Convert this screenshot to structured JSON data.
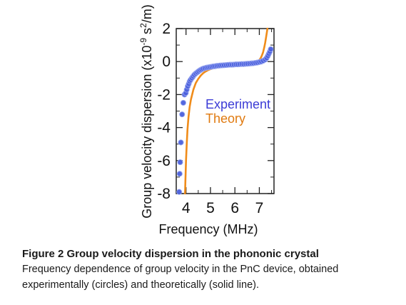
{
  "chart_data": {
    "type": "scatter",
    "xlabel": "Frequency (MHz)",
    "ylabel_prefix": "Group velocity dispersion (x10",
    "ylabel_exp1": "-9",
    "ylabel_mid": " s",
    "ylabel_exp2": "2",
    "ylabel_suffix": "/m)",
    "xlim": [
      3.6,
      7.6
    ],
    "ylim": [
      -8,
      2
    ],
    "xticks": [
      4,
      5,
      6,
      7
    ],
    "xtick_labels": [
      "4",
      "5",
      "6",
      "7"
    ],
    "yticks": [
      -8,
      -6,
      -4,
      -2,
      0,
      2
    ],
    "ytick_labels": [
      "-8",
      "-6",
      "-4",
      "-2",
      "0",
      "2"
    ],
    "legend_position": "right",
    "series": [
      {
        "name": "Experiment",
        "kind": "circles",
        "color": "#4a5fdc",
        "x": [
          3.72,
          3.74,
          3.76,
          3.79,
          3.84,
          3.89,
          3.94,
          3.99,
          4.03,
          4.07,
          4.11,
          4.15,
          4.19,
          4.24,
          4.29,
          4.34,
          4.4,
          4.46,
          4.52,
          4.58,
          4.64,
          4.7,
          4.77,
          4.84,
          4.91,
          4.98,
          5.05,
          5.12,
          5.19,
          5.26,
          5.33,
          5.4,
          5.48,
          5.56,
          5.64,
          5.72,
          5.8,
          5.88,
          5.96,
          6.04,
          6.12,
          6.2,
          6.28,
          6.36,
          6.44,
          6.52,
          6.6,
          6.68,
          6.76,
          6.84,
          6.92,
          7.0,
          7.08,
          7.16,
          7.24,
          7.3,
          7.35,
          7.39,
          7.43,
          7.47
        ],
        "y": [
          -7.9,
          -6.8,
          -6.1,
          -4.9,
          -3.2,
          -2.5,
          -2.0,
          -1.9,
          -1.7,
          -1.5,
          -1.35,
          -1.2,
          -1.1,
          -1.0,
          -0.9,
          -0.8,
          -0.72,
          -0.65,
          -0.58,
          -0.52,
          -0.47,
          -0.43,
          -0.4,
          -0.37,
          -0.35,
          -0.33,
          -0.31,
          -0.29,
          -0.28,
          -0.26,
          -0.25,
          -0.24,
          -0.23,
          -0.22,
          -0.21,
          -0.2,
          -0.19,
          -0.19,
          -0.18,
          -0.17,
          -0.17,
          -0.16,
          -0.15,
          -0.15,
          -0.14,
          -0.13,
          -0.12,
          -0.11,
          -0.1,
          -0.08,
          -0.06,
          -0.03,
          0.0,
          0.05,
          0.12,
          0.22,
          0.35,
          0.48,
          0.6,
          0.75
        ]
      },
      {
        "name": "Theory",
        "kind": "line",
        "color": "#f08c1a",
        "x": [
          3.96,
          3.98,
          4.0,
          4.03,
          4.06,
          4.1,
          4.15,
          4.2,
          4.3,
          4.4,
          4.5,
          4.6,
          4.7,
          4.8,
          4.9,
          5.0,
          5.2,
          5.4,
          5.6,
          5.8,
          6.0,
          6.2,
          6.4,
          6.6,
          6.8,
          6.9,
          7.0,
          7.05,
          7.1,
          7.15,
          7.2,
          7.24,
          7.28,
          7.31,
          7.33
        ],
        "y": [
          -8.0,
          -7.0,
          -6.0,
          -5.0,
          -4.1,
          -3.4,
          -2.75,
          -2.3,
          -1.7,
          -1.3,
          -1.05,
          -0.85,
          -0.7,
          -0.6,
          -0.52,
          -0.46,
          -0.37,
          -0.31,
          -0.27,
          -0.24,
          -0.22,
          -0.2,
          -0.17,
          -0.13,
          -0.06,
          0.0,
          0.1,
          0.2,
          0.35,
          0.55,
          0.85,
          1.15,
          1.5,
          1.8,
          2.0
        ]
      }
    ]
  },
  "caption": {
    "title": "Figure 2 Group velocity dispersion in the phononic crystal",
    "body": "Frequency dependence of group velocity in the PnC device, obtained experimentally (circles) and theoretically (solid line)."
  }
}
